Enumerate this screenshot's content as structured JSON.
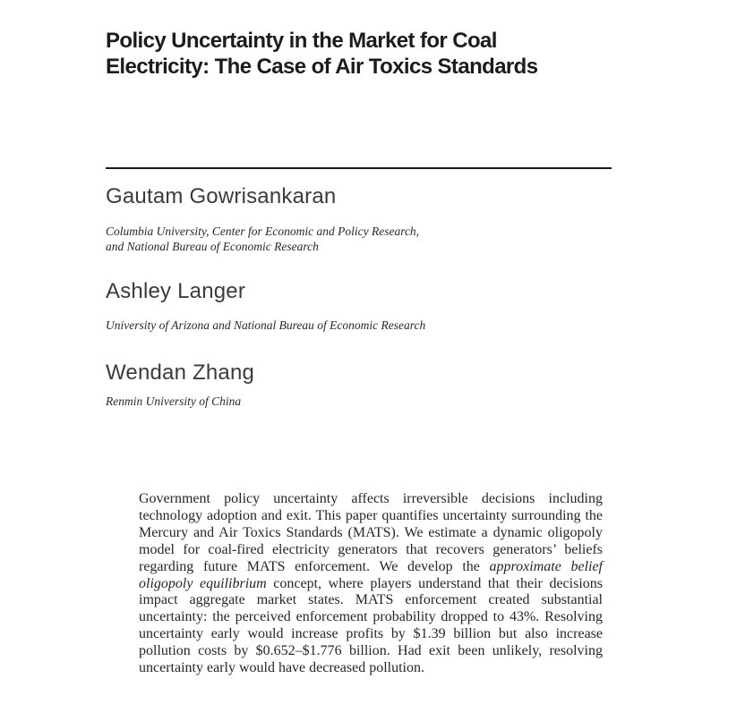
{
  "title": {
    "line1": "Policy Uncertainty in the Market for Coal",
    "line2": "Electricity: The Case of Air Toxics Standards"
  },
  "authors": [
    {
      "name": "Gautam Gowrisankaran",
      "affiliation_lines": [
        "Columbia University, Center for Economic and Policy Research,",
        "and National Bureau of Economic Research"
      ]
    },
    {
      "name": "Ashley Langer",
      "affiliation_lines": [
        "University of Arizona and National Bureau of Economic Research"
      ]
    },
    {
      "name": "Wendan Zhang",
      "affiliation_lines": [
        "Renmin University of China"
      ]
    }
  ],
  "abstract": {
    "part1": "Government policy uncertainty affects irreversible decisions including technology adoption and exit. This paper quantifies uncertainty surrounding the Mercury and Air Toxics Standards (MATS). We estimate a dynamic oligopoly model for coal-fired electricity generators that recovers generators’ beliefs regarding future MATS enforcement. We develop the ",
    "italic_phrase": "approximate belief oligopoly equilibrium",
    "part2": " concept, where players understand that their decisions impact aggregate market states. MATS enforcement created substantial uncertainty: the perceived enforcement probability dropped to 43%. Resolving uncertainty early would increase profits by $1.39 billion but also increase pollution costs by $0.652–$1.776 billion. Had exit been unlikely, resolving uncertainty early would have decreased pollution."
  },
  "colors": {
    "title_text": "#1c1c1d",
    "author_text": "#3b3b3c",
    "body_text": "#292526",
    "rule": "#1a1a1a",
    "page_background": "#ffffff"
  }
}
